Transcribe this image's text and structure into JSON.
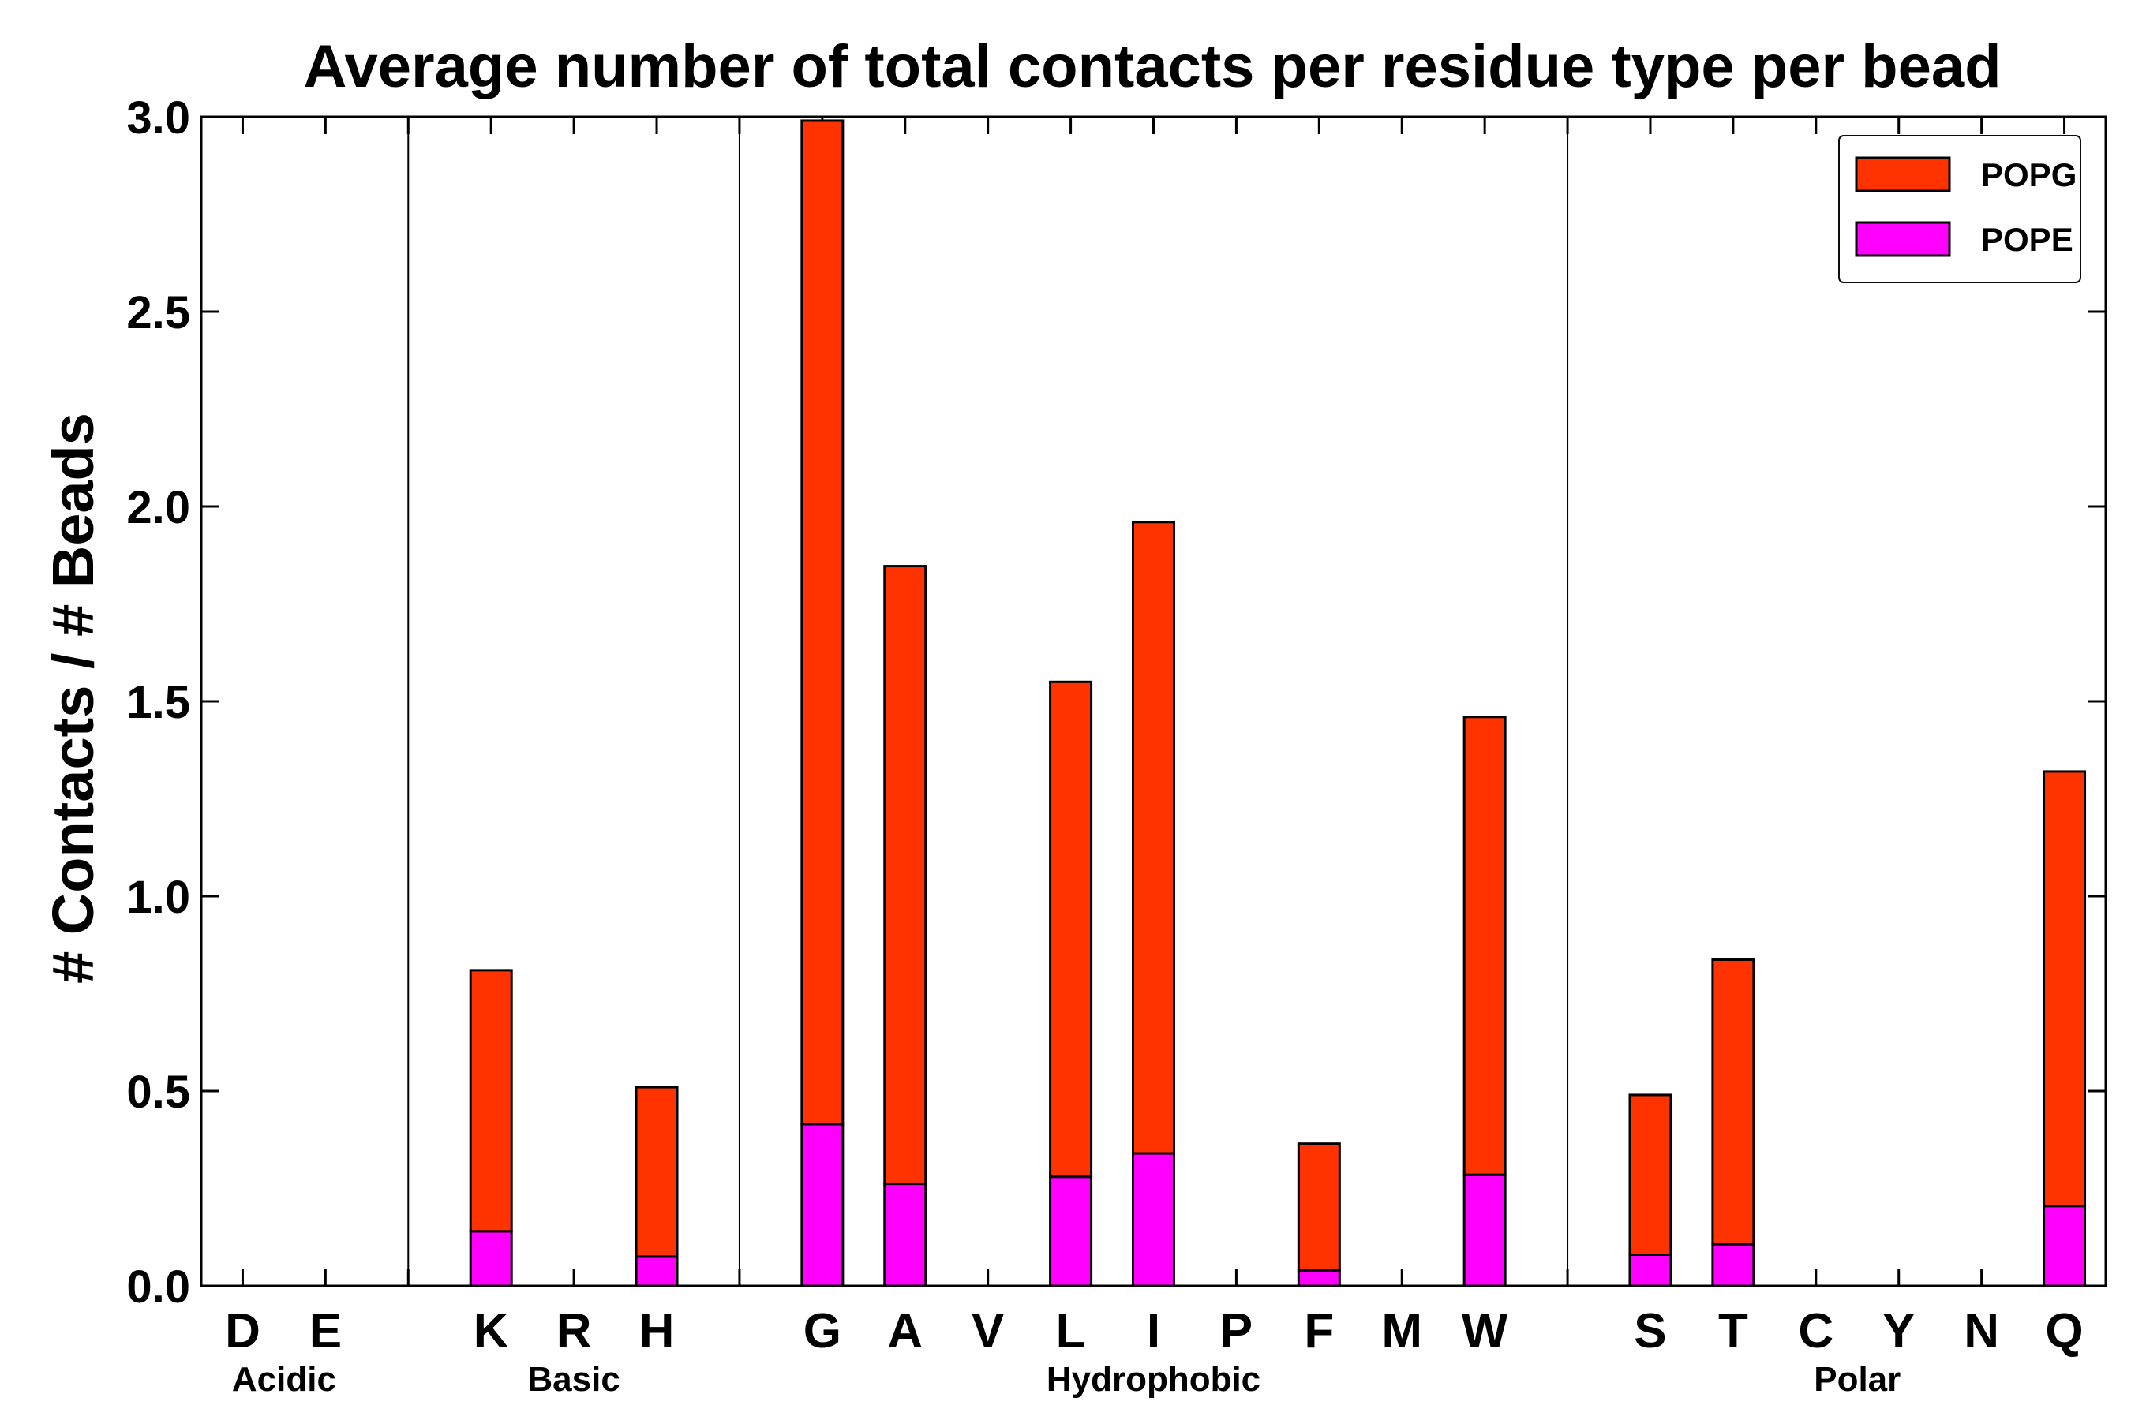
{
  "chart_data": {
    "type": "bar",
    "stacked": true,
    "title": "Average number of total contacts per residue type per bead",
    "xlabel": "",
    "ylabel": "# Contacts / # Beads",
    "ylim": [
      0,
      3.0
    ],
    "yticks": [
      "0.0",
      "0.5",
      "1.0",
      "1.5",
      "2.0",
      "2.5",
      "3.0"
    ],
    "categories": [
      "D",
      "E",
      "",
      "K",
      "R",
      "H",
      "",
      "G",
      "A",
      "V",
      "L",
      "I",
      "P",
      "F",
      "M",
      "W",
      "",
      "S",
      "T",
      "C",
      "Y",
      "N",
      "Q"
    ],
    "series": [
      {
        "name": "POPE",
        "color": "#ff00ff",
        "values": [
          0,
          0,
          0,
          0.14,
          0,
          0.075,
          0,
          0.415,
          0.262,
          0,
          0.28,
          0.34,
          0,
          0.04,
          0,
          0.285,
          0,
          0.08,
          0.107,
          0,
          0,
          0,
          0.205
        ]
      },
      {
        "name": "POPG",
        "color": "#ff3300",
        "values": [
          0,
          0,
          0,
          0.67,
          0,
          0.435,
          0,
          2.575,
          1.585,
          0,
          1.27,
          1.62,
          0,
          0.325,
          0,
          1.175,
          0,
          0.41,
          0.73,
          0,
          0,
          0,
          1.115
        ]
      }
    ],
    "groups": [
      {
        "label": "Acidic",
        "start": 0,
        "end": 1
      },
      {
        "label": "Basic",
        "start": 3,
        "end": 5
      },
      {
        "label": "Hydrophobic",
        "start": 7,
        "end": 15
      },
      {
        "label": "Polar",
        "start": 17,
        "end": 22
      }
    ],
    "separators_after": [
      2,
      6,
      16
    ],
    "legend": {
      "position": "top-right",
      "entries": [
        "POPG",
        "POPE"
      ]
    }
  }
}
